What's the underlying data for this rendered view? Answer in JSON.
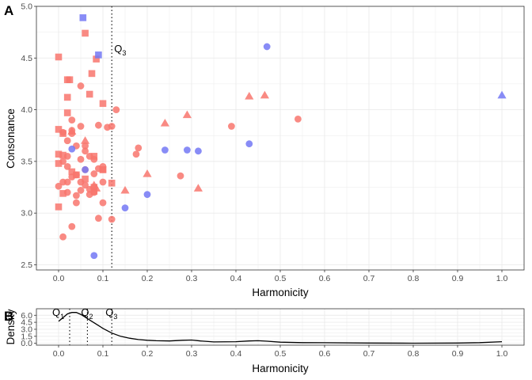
{
  "colors": {
    "red": "#F8766D",
    "blue": "#7378F5",
    "grid": "#EBEBEB",
    "frame": "#333333"
  },
  "chart_data": [
    {
      "panel_label": "A",
      "type": "scatter",
      "xlabel": "Harmonicity",
      "ylabel": "Consonance",
      "xlim": [
        -0.05,
        1.05
      ],
      "ylim": [
        2.45,
        5.0
      ],
      "x_ticks": [
        "0.0",
        "0.1",
        "0.2",
        "0.3",
        "0.4",
        "0.5",
        "0.6",
        "0.7",
        "0.8",
        "0.9",
        "1.0"
      ],
      "y_ticks": [
        "2.5",
        "3.0",
        "3.5",
        "4.0",
        "4.5",
        "5.0"
      ],
      "grid": true,
      "annotations": [
        {
          "label": "Q",
          "subscript": "3",
          "x": 0.12
        }
      ],
      "series": [
        {
          "color": "red",
          "shape": "circle",
          "points": [
            [
              0.01,
              2.77
            ],
            [
              0.03,
              2.87
            ],
            [
              0.04,
              3.1
            ],
            [
              0.04,
              3.17
            ],
            [
              0.02,
              3.2
            ],
            [
              0.05,
              3.22
            ],
            [
              0.06,
              3.27
            ],
            [
              0.07,
              3.18
            ],
            [
              0.09,
              2.95
            ],
            [
              0.12,
              2.94
            ],
            [
              0.1,
              3.1
            ],
            [
              0.08,
              3.2
            ],
            [
              0.05,
              3.3
            ],
            [
              0.03,
              3.35
            ],
            [
              0.02,
              3.45
            ],
            [
              0.01,
              3.5
            ],
            [
              0.02,
              3.55
            ],
            [
              0.05,
              3.52
            ],
            [
              0.06,
              3.42
            ],
            [
              0.08,
              3.38
            ],
            [
              0.09,
              3.43
            ],
            [
              0.1,
              3.45
            ],
            [
              0.06,
              3.6
            ],
            [
              0.04,
              3.65
            ],
            [
              0.02,
              3.7
            ],
            [
              0.03,
              3.8
            ],
            [
              0.05,
              3.84
            ],
            [
              0.09,
              3.85
            ],
            [
              0.11,
              3.83
            ],
            [
              0.12,
              3.84
            ],
            [
              0.13,
              4.0
            ],
            [
              0.05,
              4.23
            ],
            [
              0.03,
              3.77
            ],
            [
              0.01,
              3.78
            ],
            [
              0.07,
              3.55
            ],
            [
              0.18,
              3.63
            ],
            [
              0.175,
              3.57
            ],
            [
              0.275,
              3.36
            ],
            [
              0.39,
              3.84
            ],
            [
              0.54,
              3.91
            ],
            [
              0.02,
              3.3
            ],
            [
              0.04,
              3.37
            ],
            [
              0.07,
              3.23
            ],
            [
              0.1,
              3.3
            ],
            [
              0.03,
              3.9
            ],
            [
              0.06,
              3.65
            ],
            [
              0.01,
              3.3
            ],
            [
              0.0,
              3.26
            ],
            [
              0.08,
              3.52
            ]
          ]
        },
        {
          "color": "red",
          "shape": "square",
          "points": [
            [
              0.0,
              4.51
            ],
            [
              0.06,
              4.74
            ],
            [
              0.085,
              4.49
            ],
            [
              0.02,
              4.29
            ],
            [
              0.025,
              4.29
            ],
            [
              0.075,
              4.35
            ],
            [
              0.02,
              4.12
            ],
            [
              0.07,
              4.15
            ],
            [
              0.1,
              4.06
            ],
            [
              0.02,
              3.97
            ],
            [
              0.0,
              3.81
            ],
            [
              0.01,
              3.77
            ],
            [
              0.0,
              3.57
            ],
            [
              0.01,
              3.56
            ],
            [
              0.08,
              3.55
            ],
            [
              0.0,
              3.48
            ],
            [
              0.1,
              3.42
            ],
            [
              0.03,
              3.4
            ],
            [
              0.04,
              3.37
            ],
            [
              0.1,
              3.42
            ],
            [
              0.12,
              3.29
            ],
            [
              0.08,
              3.25
            ],
            [
              0.08,
              3.21
            ],
            [
              0.06,
              3.33
            ],
            [
              0.01,
              3.19
            ],
            [
              0.0,
              3.06
            ]
          ]
        },
        {
          "color": "red",
          "shape": "triangle",
          "points": [
            [
              0.03,
              3.79
            ],
            [
              0.06,
              3.7
            ],
            [
              0.08,
              3.27
            ],
            [
              0.085,
              3.24
            ],
            [
              0.15,
              3.22
            ],
            [
              0.2,
              3.38
            ],
            [
              0.24,
              3.87
            ],
            [
              0.29,
              3.95
            ],
            [
              0.315,
              3.24
            ],
            [
              0.43,
              4.13
            ],
            [
              0.465,
              4.14
            ]
          ]
        },
        {
          "color": "blue",
          "shape": "circle",
          "points": [
            [
              0.03,
              3.62
            ],
            [
              0.06,
              3.42
            ],
            [
              0.08,
              2.59
            ],
            [
              0.15,
              3.05
            ],
            [
              0.2,
              3.18
            ],
            [
              0.24,
              3.61
            ],
            [
              0.29,
              3.61
            ],
            [
              0.315,
              3.6
            ],
            [
              0.43,
              3.67
            ],
            [
              0.47,
              4.61
            ]
          ]
        },
        {
          "color": "blue",
          "shape": "square",
          "points": [
            [
              0.055,
              4.89
            ],
            [
              0.09,
              4.53
            ]
          ]
        },
        {
          "color": "blue",
          "shape": "triangle",
          "points": [
            [
              1.0,
              4.14
            ]
          ]
        }
      ]
    },
    {
      "panel_label": "B",
      "type": "line",
      "xlabel": "Harmonicity",
      "ylabel": "Density",
      "xlim": [
        -0.05,
        1.05
      ],
      "ylim": [
        -0.4,
        7.4
      ],
      "x_ticks": [
        "0.0",
        "0.1",
        "0.2",
        "0.3",
        "0.4",
        "0.5",
        "0.6",
        "0.7",
        "0.8",
        "0.9",
        "1.0"
      ],
      "y_ticks": [
        "0.0",
        "1.5",
        "3.0",
        "4.5",
        "6.0"
      ],
      "grid": true,
      "quantiles": [
        {
          "label": "Q",
          "subscript": "1",
          "x": 0.025
        },
        {
          "label": "Q",
          "subscript": "2",
          "x": 0.065
        },
        {
          "label": "Q",
          "subscript": "3",
          "x": 0.12
        }
      ],
      "x": [
        0,
        0.01,
        0.02,
        0.03,
        0.04,
        0.05,
        0.06,
        0.07,
        0.08,
        0.09,
        0.1,
        0.12,
        0.14,
        0.16,
        0.18,
        0.2,
        0.22,
        0.25,
        0.28,
        0.3,
        0.32,
        0.35,
        0.4,
        0.43,
        0.45,
        0.47,
        0.5,
        0.55,
        0.6,
        0.7,
        0.8,
        0.9,
        0.95,
        1.0
      ],
      "y": [
        4.7,
        5.5,
        6.3,
        6.6,
        6.6,
        6.2,
        5.6,
        5.0,
        4.4,
        3.8,
        3.2,
        2.2,
        1.5,
        1.1,
        0.8,
        0.65,
        0.55,
        0.5,
        0.65,
        0.7,
        0.5,
        0.3,
        0.35,
        0.5,
        0.55,
        0.45,
        0.25,
        0.15,
        0.12,
        0.06,
        0.03,
        0.06,
        0.15,
        0.35
      ]
    }
  ]
}
